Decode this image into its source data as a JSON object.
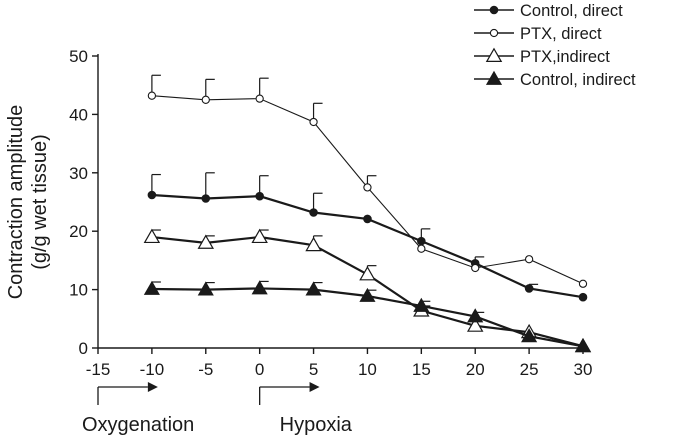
{
  "chart_data": {
    "type": "line",
    "title": "",
    "xlabel": "",
    "ylabel_lines": [
      "Contraction amplitude",
      "(g/g wet tissue)"
    ],
    "xlim": [
      -15,
      30
    ],
    "ylim": [
      0,
      50
    ],
    "x_ticks": [
      -15,
      -10,
      -5,
      0,
      5,
      10,
      15,
      20,
      25,
      30
    ],
    "y_ticks": [
      0,
      10,
      20,
      30,
      40,
      50
    ],
    "grid": false,
    "legend_position": "top-right",
    "series": [
      {
        "name": "Control, direct",
        "marker": "filled-circle",
        "x": [
          -10,
          -5,
          0,
          5,
          10,
          15,
          20,
          25,
          30
        ],
        "y": [
          26.2,
          25.6,
          26.0,
          23.2,
          22.1,
          18.3,
          14.5,
          10.2,
          8.7
        ],
        "err": [
          3.5,
          4.4,
          3.5,
          3.3,
          0,
          2.1,
          1.1,
          0.7,
          0
        ]
      },
      {
        "name": "PTX, direct",
        "marker": "open-circle",
        "x": [
          -10,
          -5,
          0,
          5,
          10,
          15,
          20,
          25,
          30
        ],
        "y": [
          43.2,
          42.5,
          42.7,
          38.7,
          27.5,
          17.0,
          13.7,
          15.2,
          11.0
        ],
        "err": [
          3.5,
          3.5,
          3.5,
          3.2,
          2.0,
          0,
          0,
          0,
          0
        ]
      },
      {
        "name": "PTX,indirect",
        "marker": "open-triangle",
        "x": [
          -10,
          -5,
          0,
          5,
          10,
          15,
          20,
          25,
          30
        ],
        "y": [
          19.0,
          18.0,
          19.0,
          17.6,
          12.6,
          6.4,
          3.8,
          2.7,
          0.3
        ],
        "err": [
          1.2,
          1.2,
          1.2,
          1.6,
          1.5,
          0.8,
          0,
          0,
          0
        ]
      },
      {
        "name": "Control, indirect",
        "marker": "filled-triangle",
        "x": [
          -10,
          -5,
          0,
          5,
          10,
          15,
          20,
          25,
          30
        ],
        "y": [
          10.1,
          10.0,
          10.2,
          10.0,
          8.9,
          7.2,
          5.4,
          2.0,
          0.3
        ],
        "err": [
          1.2,
          1.2,
          1.2,
          1.2,
          1.0,
          0.8,
          0.7,
          0,
          0
        ]
      }
    ],
    "annotations": [
      {
        "label": "Oxygenation",
        "from": -15,
        "to": -10
      },
      {
        "label": "Hypoxia",
        "from": 0,
        "to": 5
      }
    ]
  }
}
